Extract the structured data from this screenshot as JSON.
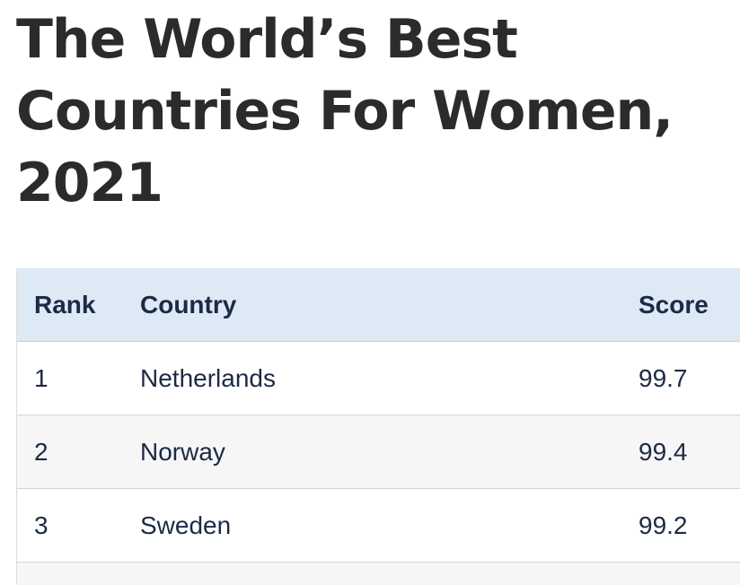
{
  "title_lines": [
    "The World’s Best",
    "Countries For Women,",
    "2021"
  ],
  "table": {
    "headers": {
      "rank": "Rank",
      "country": "Country",
      "score": "Score"
    },
    "rows": [
      {
        "rank": "1",
        "country": "Netherlands",
        "score": "99.7"
      },
      {
        "rank": "2",
        "country": "Norway",
        "score": "99.4"
      },
      {
        "rank": "3",
        "country": "Sweden",
        "score": "99.2"
      }
    ]
  },
  "colors": {
    "header_bg": "#dde9f5",
    "text": "#1c2a44",
    "title": "#2b2b2b",
    "alt_row_bg": "#f6f6f6"
  }
}
